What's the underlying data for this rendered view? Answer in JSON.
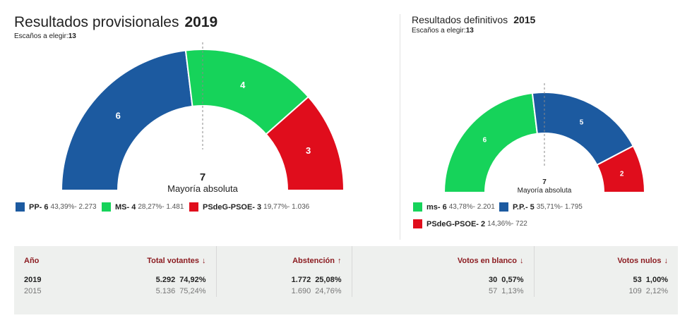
{
  "left": {
    "title": "Resultados provisionales",
    "year": "2019",
    "seats_label": "Escaños a elegir:",
    "seats_value": "13",
    "majority_number": "7",
    "majority_label": "Mayoría absoluta",
    "legend": [
      {
        "name": "PP- 6",
        "detail": "43,39%- 2.273",
        "color": "#1c5aa0"
      },
      {
        "name": "MS- 4",
        "detail": "28,27%- 1.481",
        "color": "#16d35a"
      },
      {
        "name": "PSdeG-PSOE- 3",
        "detail": "19,77%- 1.036",
        "color": "#e00d1c"
      }
    ]
  },
  "right": {
    "title": "Resultados definitivos",
    "year": "2015",
    "seats_label": "Escaños a elegir:",
    "seats_value": "13",
    "majority_number": "7",
    "majority_label": "Mayoría absoluta",
    "legend": [
      {
        "name": "ms- 6",
        "detail": "43,78%- 2.201",
        "color": "#16d35a"
      },
      {
        "name": "P.P.- 5",
        "detail": "35,71%- 1.795",
        "color": "#1c5aa0"
      },
      {
        "name": "PSdeG-PSOE- 2",
        "detail": "14,36%- 722",
        "color": "#e00d1c"
      }
    ]
  },
  "chart_data": [
    {
      "type": "pie",
      "categories": [
        "PP",
        "MS",
        "PSdeG-PSOE"
      ],
      "values": [
        6,
        4,
        3
      ],
      "colors": [
        "#1c5aa0",
        "#16d35a",
        "#e00d1c"
      ],
      "title": "Resultados provisionales 2019"
    },
    {
      "type": "pie",
      "categories": [
        "ms",
        "P.P.",
        "PSdeG-PSOE"
      ],
      "values": [
        6,
        5,
        2
      ],
      "colors": [
        "#16d35a",
        "#1c5aa0",
        "#e00d1c"
      ],
      "title": "Resultados definitivos 2015"
    }
  ],
  "table": {
    "headers": {
      "year": "Año",
      "votantes": "Total votantes",
      "abstencion": "Abstención",
      "blanco": "Votos en blanco",
      "nulos": "Votos nulos"
    },
    "arrows": {
      "votantes": "↓",
      "abstencion": "↑",
      "blanco": "↓",
      "nulos": "↓"
    },
    "rows": [
      {
        "year": "2019",
        "votantes": "5.292",
        "votantes_pct": "74,92%",
        "abstencion": "1.772",
        "abstencion_pct": "25,08%",
        "blanco": "30",
        "blanco_pct": "0,57%",
        "nulos": "53",
        "nulos_pct": "1,00%"
      },
      {
        "year": "2015",
        "votantes": "5.136",
        "votantes_pct": "75,24%",
        "abstencion": "1.690",
        "abstencion_pct": "24,76%",
        "blanco": "57",
        "blanco_pct": "1,13%",
        "nulos": "109",
        "nulos_pct": "2,12%"
      }
    ]
  }
}
